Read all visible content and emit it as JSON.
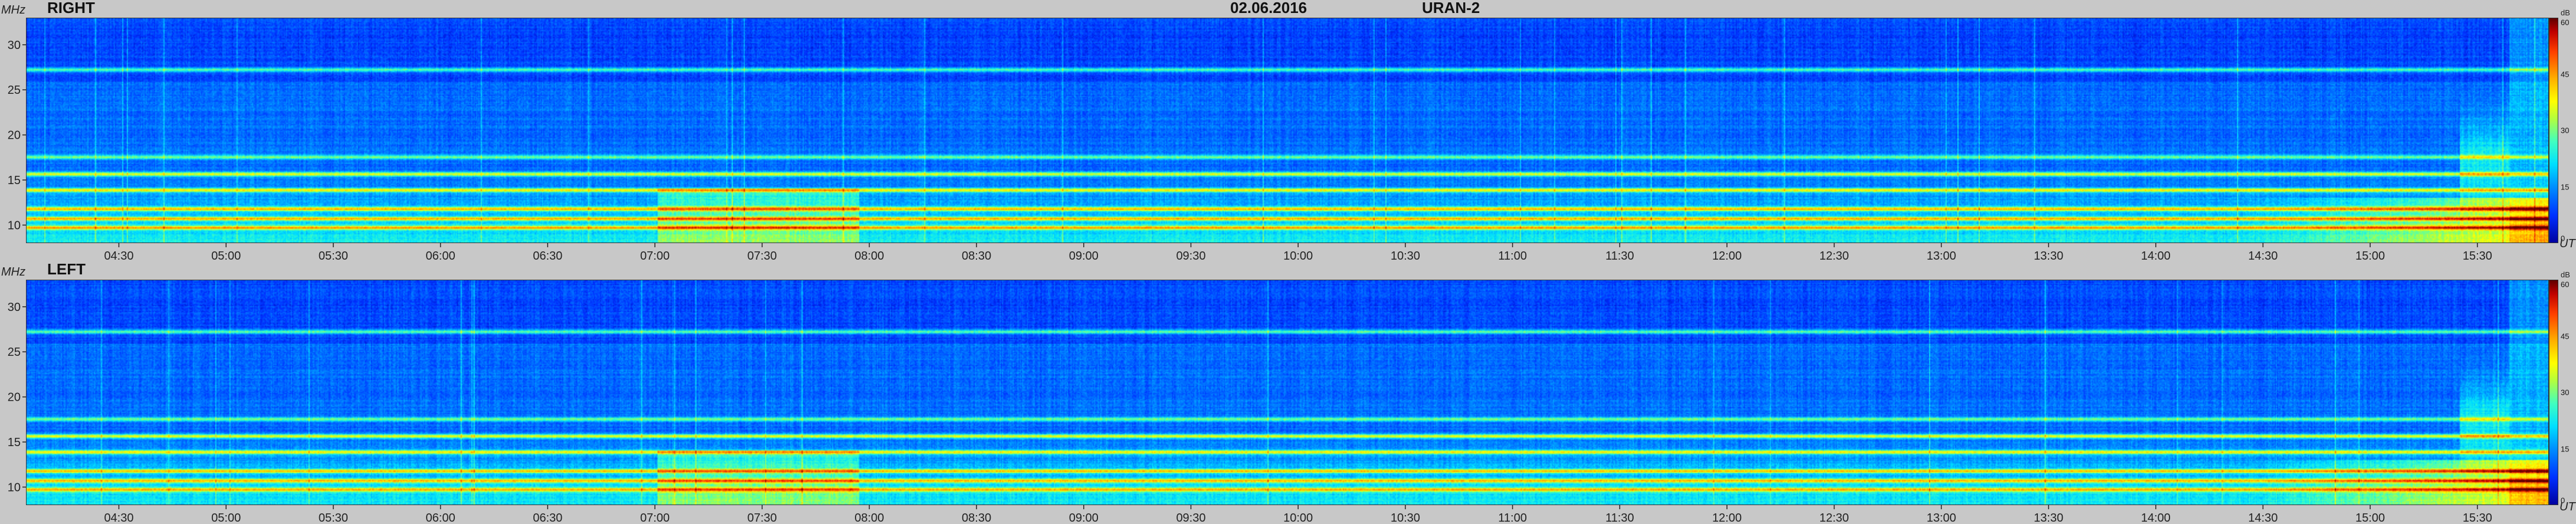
{
  "header": {
    "date": "02.06.2016",
    "instrument": "URAN-2"
  },
  "chart_data": [
    {
      "type": "heatmap",
      "panel_label": "RIGHT",
      "y_unit": "MHz",
      "x_unit": "UT",
      "x_tick_labels": [
        "04:30",
        "05:00",
        "05:30",
        "06:00",
        "06:30",
        "07:00",
        "07:30",
        "08:00",
        "08:30",
        "09:00",
        "09:30",
        "10:00",
        "10:30",
        "11:00",
        "11:30",
        "12:00",
        "12:30",
        "13:00",
        "13:30",
        "14:00",
        "14:30",
        "15:00",
        "15:30"
      ],
      "y_ticks": [
        10,
        15,
        20,
        25,
        30
      ],
      "xlim": [
        "04:04",
        "15:50"
      ],
      "ylim": [
        8,
        33
      ],
      "colorbar": {
        "label": "dB",
        "ticks": [
          0,
          15,
          30,
          45,
          60
        ],
        "range": [
          0,
          60
        ]
      },
      "interference_bands_mhz": [
        9.6,
        10.6,
        11.7,
        13.8,
        15.6,
        17.5,
        27.3
      ]
    },
    {
      "type": "heatmap",
      "panel_label": "LEFT",
      "y_unit": "MHz",
      "x_unit": "UT",
      "x_tick_labels": [
        "04:30",
        "05:00",
        "05:30",
        "06:00",
        "06:30",
        "07:00",
        "07:30",
        "08:00",
        "08:30",
        "09:00",
        "09:30",
        "10:00",
        "10:30",
        "11:00",
        "11:30",
        "12:00",
        "12:30",
        "13:00",
        "13:30",
        "14:00",
        "14:30",
        "15:00",
        "15:30"
      ],
      "y_ticks": [
        10,
        15,
        20,
        25,
        30
      ],
      "xlim": [
        "04:04",
        "15:50"
      ],
      "ylim": [
        8,
        33
      ],
      "colorbar": {
        "label": "dB",
        "ticks": [
          0,
          15,
          30,
          45,
          60
        ],
        "range": [
          0,
          60
        ]
      },
      "interference_bands_mhz": [
        9.6,
        10.6,
        11.7,
        13.8,
        15.6,
        17.5,
        27.3
      ]
    }
  ]
}
